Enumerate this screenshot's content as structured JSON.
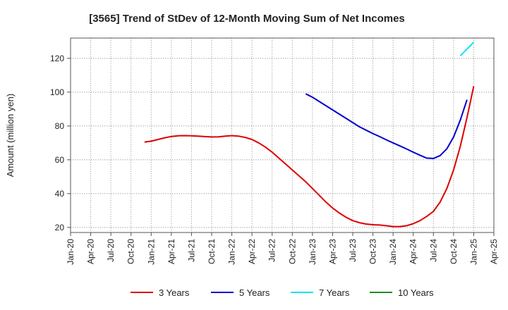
{
  "chart_data": {
    "type": "line",
    "title": "[3565]  Trend of StDev of 12-Month Moving Sum of Net Incomes",
    "ylabel": "Amount (million yen)",
    "xlabel": "",
    "ylim": [
      17,
      132
    ],
    "yticks": [
      20,
      40,
      60,
      80,
      100,
      120
    ],
    "x_tick_labels": [
      "Jan-20",
      "Apr-20",
      "Jul-20",
      "Oct-20",
      "Jan-21",
      "Apr-21",
      "Jul-21",
      "Oct-21",
      "Jan-22",
      "Apr-22",
      "Jul-22",
      "Oct-22",
      "Jan-23",
      "Apr-23",
      "Jul-23",
      "Oct-23",
      "Jan-24",
      "Apr-24",
      "Jul-24",
      "Oct-24",
      "Jan-25",
      "Apr-25"
    ],
    "grid": true,
    "legend_position": "bottom",
    "series": [
      {
        "name": "3 Years",
        "color": "#dd0000",
        "points": [
          [
            "2020-12",
            70.5
          ],
          [
            "2021-01",
            71
          ],
          [
            "2021-02",
            72
          ],
          [
            "2021-03",
            73
          ],
          [
            "2021-04",
            73.8
          ],
          [
            "2021-05",
            74.2
          ],
          [
            "2021-06",
            74.3
          ],
          [
            "2021-07",
            74.2
          ],
          [
            "2021-08",
            74
          ],
          [
            "2021-09",
            73.7
          ],
          [
            "2021-10",
            73.5
          ],
          [
            "2021-11",
            73.6
          ],
          [
            "2021-12",
            74
          ],
          [
            "2022-01",
            74.3
          ],
          [
            "2022-02",
            74
          ],
          [
            "2022-03",
            73.2
          ],
          [
            "2022-04",
            72
          ],
          [
            "2022-05",
            70
          ],
          [
            "2022-06",
            67.5
          ],
          [
            "2022-07",
            64.5
          ],
          [
            "2022-08",
            61
          ],
          [
            "2022-09",
            57.5
          ],
          [
            "2022-10",
            54
          ],
          [
            "2022-11",
            50.5
          ],
          [
            "2022-12",
            47
          ],
          [
            "2023-01",
            43
          ],
          [
            "2023-02",
            39
          ],
          [
            "2023-03",
            35
          ],
          [
            "2023-04",
            31.5
          ],
          [
            "2023-05",
            28.5
          ],
          [
            "2023-06",
            26
          ],
          [
            "2023-07",
            24
          ],
          [
            "2023-08",
            22.8
          ],
          [
            "2023-09",
            22
          ],
          [
            "2023-10",
            21.6
          ],
          [
            "2023-11",
            21.4
          ],
          [
            "2023-12",
            21
          ],
          [
            "2024-01",
            20.5
          ],
          [
            "2024-02",
            20.5
          ],
          [
            "2024-03",
            21
          ],
          [
            "2024-04",
            22.2
          ],
          [
            "2024-05",
            24
          ],
          [
            "2024-06",
            26.5
          ],
          [
            "2024-07",
            29.5
          ],
          [
            "2024-08",
            35
          ],
          [
            "2024-09",
            43
          ],
          [
            "2024-10",
            54
          ],
          [
            "2024-11",
            68
          ],
          [
            "2024-12",
            85
          ],
          [
            "2025-01",
            103.5
          ]
        ]
      },
      {
        "name": "5 Years",
        "color": "#0000cc",
        "points": [
          [
            "2022-12",
            99
          ],
          [
            "2023-01",
            97
          ],
          [
            "2023-02",
            94.5
          ],
          [
            "2023-03",
            92
          ],
          [
            "2023-04",
            89.5
          ],
          [
            "2023-05",
            87
          ],
          [
            "2023-06",
            84.5
          ],
          [
            "2023-07",
            82
          ],
          [
            "2023-08",
            79.5
          ],
          [
            "2023-09",
            77.5
          ],
          [
            "2023-10",
            75.5
          ],
          [
            "2023-11",
            73.7
          ],
          [
            "2023-12",
            71.8
          ],
          [
            "2024-01",
            70
          ],
          [
            "2024-02",
            68.2
          ],
          [
            "2024-03",
            66.4
          ],
          [
            "2024-04",
            64.5
          ],
          [
            "2024-05",
            62.7
          ],
          [
            "2024-06",
            61
          ],
          [
            "2024-07",
            60.8
          ],
          [
            "2024-08",
            62.5
          ],
          [
            "2024-09",
            66.5
          ],
          [
            "2024-10",
            73.5
          ],
          [
            "2024-11",
            83.5
          ],
          [
            "2024-12",
            95.5
          ]
        ]
      },
      {
        "name": "7 Years",
        "color": "#00e5ee",
        "points": [
          [
            "2024-11",
            121.5
          ],
          [
            "2024-12",
            125.5
          ],
          [
            "2025-01",
            129.5
          ]
        ]
      },
      {
        "name": "10 Years",
        "color": "#228b22",
        "points": []
      }
    ]
  }
}
